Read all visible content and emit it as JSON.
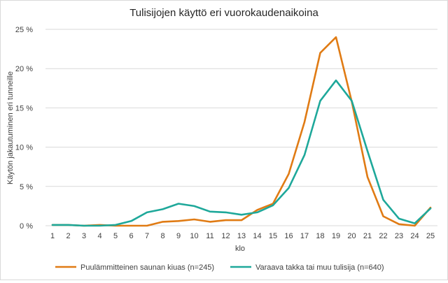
{
  "chart_data": {
    "type": "line",
    "title": "Tulisijojen käyttö eri vuorokaudenaikoina",
    "xlabel": "klo",
    "ylabel": "Käytön jakautuminen eri tunneille",
    "categories": [
      "1",
      "2",
      "3",
      "4",
      "5",
      "6",
      "7",
      "8",
      "9",
      "10",
      "11",
      "12",
      "13",
      "14",
      "15",
      "16",
      "17",
      "18",
      "19",
      "20",
      "21",
      "22",
      "23",
      "24",
      "25"
    ],
    "ylim": [
      0,
      25
    ],
    "yticks": [
      0,
      5,
      10,
      15,
      20,
      25
    ],
    "ytick_labels": [
      "0 %",
      "5 %",
      "10 %",
      "15 %",
      "20 %",
      "25 %"
    ],
    "grid": "horizontal",
    "legend_position": "bottom",
    "series": [
      {
        "name": "Puulämmitteinen saunan kiuas (n=245)",
        "color": "#e07b14",
        "values": [
          0.1,
          0.1,
          0.0,
          0.1,
          0.0,
          0.0,
          0.0,
          0.5,
          0.6,
          0.8,
          0.5,
          0.7,
          0.7,
          2.0,
          2.8,
          6.6,
          13.2,
          22.0,
          24.0,
          15.8,
          6.2,
          1.2,
          0.2,
          0.0,
          2.3
        ]
      },
      {
        "name": "Varaava takka tai muu tulisija (n=640)",
        "color": "#1ea89a",
        "values": [
          0.1,
          0.1,
          0.0,
          0.0,
          0.1,
          0.6,
          1.7,
          2.1,
          2.8,
          2.5,
          1.8,
          1.7,
          1.4,
          1.7,
          2.6,
          4.8,
          9.0,
          15.9,
          18.5,
          15.9,
          9.5,
          3.3,
          0.9,
          0.3,
          2.2
        ]
      }
    ]
  }
}
